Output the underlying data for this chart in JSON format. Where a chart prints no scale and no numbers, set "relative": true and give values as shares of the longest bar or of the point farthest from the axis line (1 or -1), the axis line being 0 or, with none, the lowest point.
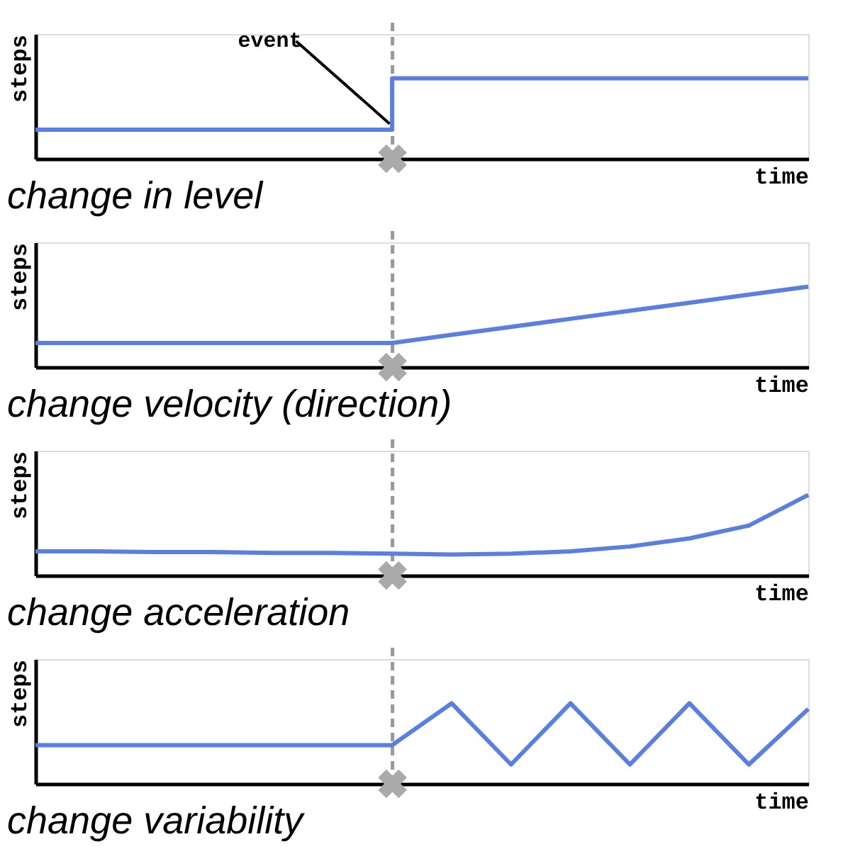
{
  "chart_data": [
    {
      "type": "step",
      "relative": true,
      "xlabel": "time",
      "ylabel": "steps",
      "categories": [
        null,
        null,
        null,
        null,
        null,
        null,
        null,
        null,
        null,
        null,
        null,
        null,
        null,
        null
      ],
      "series": [
        {
          "color": "#5b7fde",
          "values": [
            0.36,
            0.36,
            0.36,
            0.36,
            0.36,
            0.36,
            0.36,
            1,
            1,
            1,
            1,
            1,
            1,
            1
          ]
        }
      ],
      "annotations": [
        "event",
        "change in level"
      ]
    },
    {
      "type": "line",
      "relative": true,
      "xlabel": "time",
      "ylabel": "steps",
      "categories": [
        null,
        null,
        null,
        null,
        null,
        null,
        null,
        null,
        null,
        null,
        null,
        null,
        null,
        null
      ],
      "series": [
        {
          "color": "#5b7fde",
          "values": [
            0.3,
            0.3,
            0.3,
            0.3,
            0.3,
            0.3,
            0.3,
            0.4,
            0.5,
            0.6,
            0.7,
            0.8,
            0.9,
            1
          ]
        }
      ],
      "annotations": [
        "change velocity (direction)"
      ]
    },
    {
      "type": "line",
      "relative": true,
      "xlabel": "time",
      "ylabel": "steps",
      "categories": [
        null,
        null,
        null,
        null,
        null,
        null,
        null,
        null,
        null,
        null,
        null,
        null,
        null,
        null
      ],
      "series": [
        {
          "color": "#5b7fde",
          "values": [
            0.3,
            0.3,
            0.29,
            0.29,
            0.28,
            0.28,
            0.27,
            0.26,
            0.27,
            0.3,
            0.36,
            0.46,
            0.62,
            1
          ]
        }
      ],
      "annotations": [
        "change acceleration"
      ]
    },
    {
      "type": "line",
      "relative": true,
      "xlabel": "time",
      "ylabel": "steps",
      "categories": [
        null,
        null,
        null,
        null,
        null,
        null,
        null,
        null,
        null,
        null,
        null,
        null,
        null,
        null
      ],
      "series": [
        {
          "color": "#5b7fde",
          "values": [
            0.48,
            0.48,
            0.48,
            0.48,
            0.48,
            0.48,
            0.48,
            1,
            0.24,
            1,
            0.24,
            1,
            0.24,
            0.93
          ]
        }
      ],
      "annotations": [
        "change variability"
      ]
    }
  ]
}
